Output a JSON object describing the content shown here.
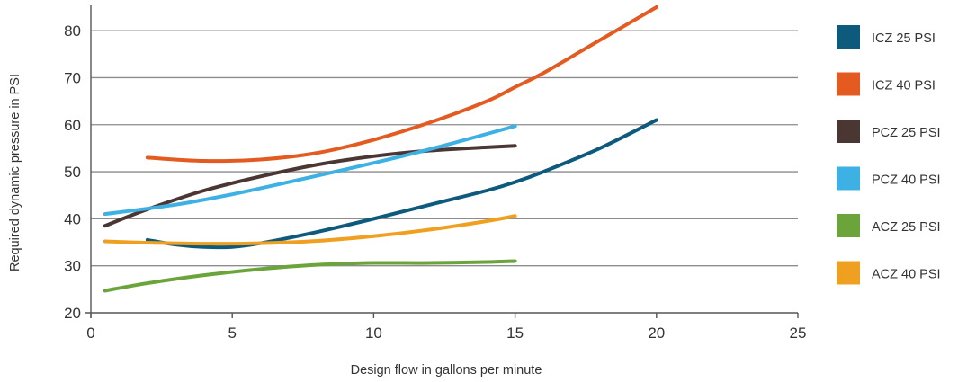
{
  "chart_data": {
    "type": "line",
    "title": "",
    "xlabel": "Design flow in gallons per minute",
    "ylabel": "Required dynamic pressure in PSI",
    "xlim": [
      0,
      25
    ],
    "ylim": [
      20,
      85
    ],
    "xticks": [
      0,
      5,
      10,
      15,
      20,
      25
    ],
    "yticks": [
      20,
      30,
      40,
      50,
      60,
      70,
      80
    ],
    "grid": "horizontal",
    "legend_position": "right",
    "series": [
      {
        "name": "ICZ 25 PSI",
        "color": "#0e5a7d",
        "x": [
          2,
          3,
          4,
          5,
          6,
          8,
          10,
          12,
          14,
          15,
          16,
          18,
          20
        ],
        "y": [
          35.5,
          34.5,
          34,
          34,
          34.8,
          37.2,
          40,
          43,
          46,
          47.8,
          50,
          55,
          61
        ]
      },
      {
        "name": "ICZ 40 PSI",
        "color": "#e35b21",
        "x": [
          2,
          4,
          6,
          8,
          10,
          12,
          14,
          15,
          16,
          18,
          20
        ],
        "y": [
          53,
          52.3,
          52.6,
          54,
          56.8,
          60.5,
          65,
          68,
          71,
          78,
          85
        ]
      },
      {
        "name": "PCZ 25 PSI",
        "color": "#4a3733",
        "x": [
          0.5,
          2,
          4,
          6,
          8,
          10,
          12,
          14,
          15
        ],
        "y": [
          38.5,
          42,
          46,
          49,
          51.5,
          53.3,
          54.5,
          55.2,
          55.5
        ]
      },
      {
        "name": "PCZ 40 PSI",
        "color": "#3db1e3",
        "x": [
          0.5,
          3,
          5,
          7,
          9,
          11,
          13,
          15
        ],
        "y": [
          41,
          43,
          45.2,
          47.8,
          50.5,
          53.3,
          56.4,
          59.7
        ]
      },
      {
        "name": "ACZ 25 PSI",
        "color": "#6aa43a",
        "x": [
          0.5,
          2,
          4,
          6,
          8,
          10,
          12,
          14,
          15
        ],
        "y": [
          24.7,
          26.3,
          28,
          29.3,
          30.2,
          30.6,
          30.6,
          30.8,
          31
        ]
      },
      {
        "name": "ACZ 40 PSI",
        "color": "#f0a021",
        "x": [
          0.5,
          2,
          4,
          6,
          8,
          10,
          12,
          14,
          15
        ],
        "y": [
          35.2,
          34.9,
          34.7,
          34.8,
          35.3,
          36.3,
          37.7,
          39.5,
          40.6
        ]
      }
    ]
  }
}
